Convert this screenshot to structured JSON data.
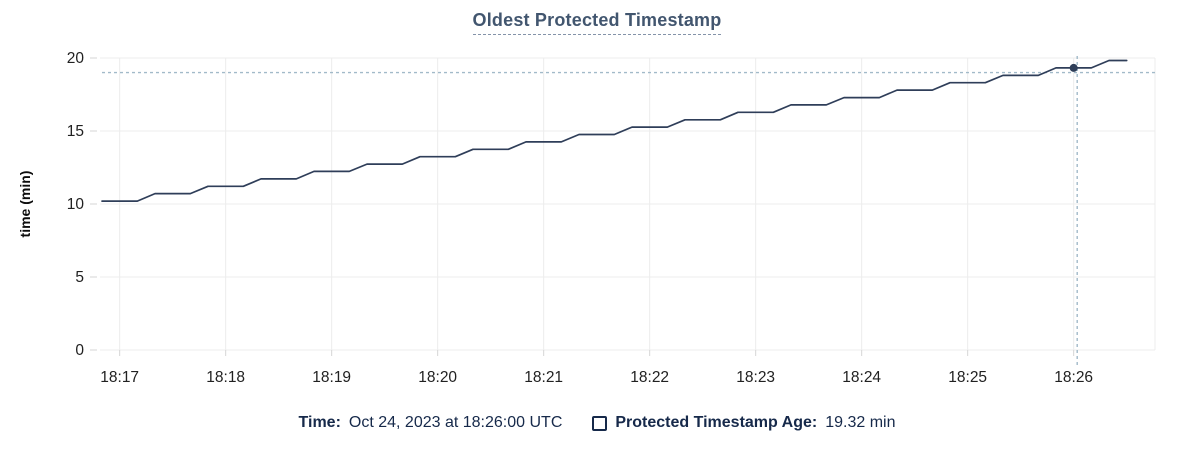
{
  "title": "Oldest Protected Timestamp",
  "colors": {
    "background": "#ffffff",
    "series_line": "#2f3e59",
    "hover_point": "#2f3e59",
    "crosshair_dash": "#a2bac9",
    "gridline": "#ececec",
    "title_text": "#42566f",
    "legend_text": "#16294a",
    "tick_text": "#212121"
  },
  "chart_data": {
    "type": "line",
    "title": "Oldest Protected Timestamp",
    "xlabel": "",
    "ylabel": "time (min)",
    "ylim": [
      0,
      20
    ],
    "y_ticks": [
      0,
      5,
      10,
      15,
      20
    ],
    "x_ticks": [
      "18:17",
      "18:18",
      "18:19",
      "18:20",
      "18:21",
      "18:22",
      "18:23",
      "18:24",
      "18:25",
      "18:26"
    ],
    "x_domain": [
      "18:16:50",
      "18:26:45"
    ],
    "grid": true,
    "legend_position": "bottom",
    "series": [
      {
        "name": "Protected Timestamp Age",
        "unit": "min",
        "points": [
          [
            "18:16:50",
            10.2
          ],
          [
            "18:17:00",
            10.2
          ],
          [
            "18:17:10",
            10.2
          ],
          [
            "18:17:20",
            10.71
          ],
          [
            "18:17:30",
            10.71
          ],
          [
            "18:17:40",
            10.71
          ],
          [
            "18:17:50",
            11.21
          ],
          [
            "18:18:00",
            11.21
          ],
          [
            "18:18:10",
            11.21
          ],
          [
            "18:18:20",
            11.72
          ],
          [
            "18:18:30",
            11.72
          ],
          [
            "18:18:40",
            11.72
          ],
          [
            "18:18:50",
            12.23
          ],
          [
            "18:19:00",
            12.23
          ],
          [
            "18:19:10",
            12.23
          ],
          [
            "18:19:20",
            12.73
          ],
          [
            "18:19:30",
            12.73
          ],
          [
            "18:19:40",
            12.73
          ],
          [
            "18:19:50",
            13.24
          ],
          [
            "18:20:00",
            13.24
          ],
          [
            "18:20:10",
            13.24
          ],
          [
            "18:20:20",
            13.75
          ],
          [
            "18:20:30",
            13.75
          ],
          [
            "18:20:40",
            13.75
          ],
          [
            "18:20:50",
            14.25
          ],
          [
            "18:21:00",
            14.25
          ],
          [
            "18:21:10",
            14.25
          ],
          [
            "18:21:20",
            14.76
          ],
          [
            "18:21:30",
            14.76
          ],
          [
            "18:21:40",
            14.76
          ],
          [
            "18:21:50",
            15.27
          ],
          [
            "18:22:00",
            15.27
          ],
          [
            "18:22:10",
            15.27
          ],
          [
            "18:22:20",
            15.77
          ],
          [
            "18:22:30",
            15.77
          ],
          [
            "18:22:40",
            15.77
          ],
          [
            "18:22:50",
            16.28
          ],
          [
            "18:23:00",
            16.28
          ],
          [
            "18:23:10",
            16.28
          ],
          [
            "18:23:20",
            16.79
          ],
          [
            "18:23:30",
            16.79
          ],
          [
            "18:23:40",
            16.79
          ],
          [
            "18:23:50",
            17.29
          ],
          [
            "18:24:00",
            17.29
          ],
          [
            "18:24:10",
            17.29
          ],
          [
            "18:24:20",
            17.8
          ],
          [
            "18:24:30",
            17.8
          ],
          [
            "18:24:40",
            17.8
          ],
          [
            "18:24:50",
            18.31
          ],
          [
            "18:25:00",
            18.31
          ],
          [
            "18:25:10",
            18.31
          ],
          [
            "18:25:20",
            18.81
          ],
          [
            "18:25:30",
            18.81
          ],
          [
            "18:25:40",
            18.81
          ],
          [
            "18:25:50",
            19.32
          ],
          [
            "18:26:00",
            19.32
          ],
          [
            "18:26:10",
            19.32
          ],
          [
            "18:26:20",
            19.83
          ],
          [
            "18:26:30",
            19.83
          ]
        ]
      }
    ],
    "hover": {
      "point_time": "18:26:00",
      "point_value": 19.32,
      "crosshair_time": "18:26:02",
      "crosshair_value": 19.0
    }
  },
  "tooltip": {
    "time_label": "Time:",
    "time_value": "Oct 24, 2023 at 18:26:00 UTC",
    "series_label": "Protected Timestamp Age:",
    "series_value": "19.32 min"
  }
}
